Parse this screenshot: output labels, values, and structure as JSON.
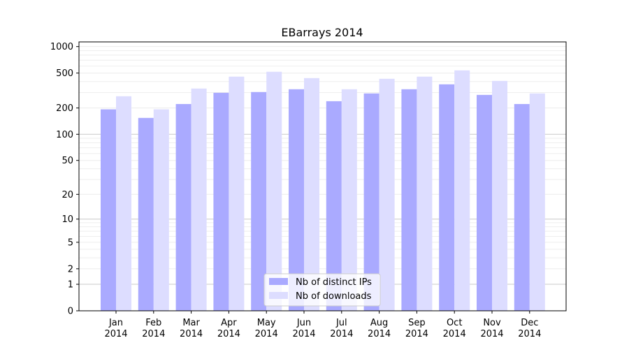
{
  "chart_data": {
    "type": "bar",
    "title": "EBarrays 2014",
    "xlabel": "",
    "ylabel": "",
    "yscale": "symlog (log of 1+value)",
    "ylim": [
      0,
      1130
    ],
    "yticks": [
      0,
      1,
      2,
      5,
      10,
      20,
      50,
      100,
      200,
      500,
      1000
    ],
    "grid": true,
    "legend_position": "bottom-center",
    "categories": [
      "Jan\n2014",
      "Feb\n2014",
      "Mar\n2014",
      "Apr\n2014",
      "May\n2014",
      "Jun\n2014",
      "Jul\n2014",
      "Aug\n2014",
      "Sep\n2014",
      "Oct\n2014",
      "Nov\n2014",
      "Dec\n2014"
    ],
    "series": [
      {
        "name": "Nb of distinct IPs",
        "color": "#aaaaff",
        "values": [
          193,
          154,
          222,
          298,
          304,
          327,
          239,
          293,
          327,
          372,
          282,
          222
        ]
      },
      {
        "name": "Nb of downloads",
        "color": "#ddddff",
        "values": [
          272,
          193,
          333,
          455,
          517,
          438,
          327,
          430,
          455,
          536,
          407,
          293
        ]
      }
    ]
  }
}
